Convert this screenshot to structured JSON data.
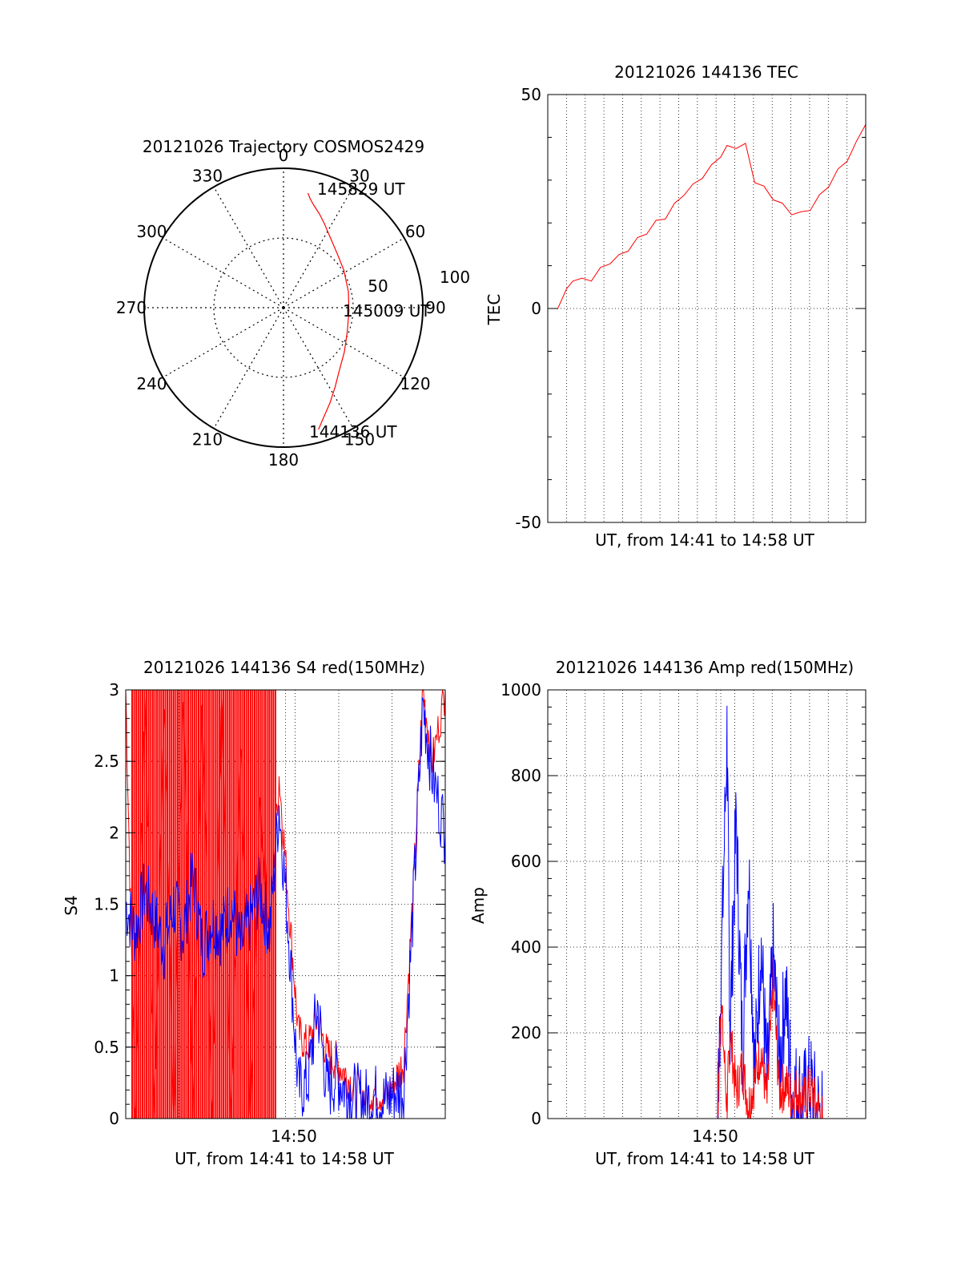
{
  "colors": {
    "red": "#ff0000",
    "blue": "#0000ff",
    "axis": "#000000"
  },
  "polar": {
    "title": "20121026 Trajectory COSMOS2429",
    "azimuth_labels": [
      "0",
      "30",
      "60",
      "90",
      "120",
      "150",
      "180",
      "210",
      "240",
      "270",
      "300",
      "330"
    ],
    "azimuths": [
      0,
      30,
      60,
      90,
      120,
      150,
      180,
      210,
      240,
      270,
      300,
      330
    ],
    "radius_labels": [
      "50",
      "100"
    ],
    "radius_values": [
      50,
      100
    ],
    "point_labels": [
      "145829 UT",
      "145009 UT",
      "144136 UT"
    ]
  },
  "chart_data": [
    {
      "type": "polar",
      "title": "20121026 Trajectory COSMOS2429",
      "rlim": [
        0,
        100
      ],
      "series": [
        {
          "color": "#ff0000",
          "azimuth": [
            12,
            14,
            17,
            21,
            26,
            33,
            44,
            58,
            76,
            93,
            111,
            126,
            138,
            147,
            154,
            160,
            164
          ],
          "zenith": [
            84,
            80,
            76,
            72,
            67,
            61,
            55,
            51,
            48,
            47,
            49,
            54,
            60,
            68,
            76,
            84,
            91
          ]
        }
      ]
    },
    {
      "type": "line",
      "title": "20121026 144136 TEC",
      "xlabel": "UT, from 14:41 to 14:58 UT",
      "ylabel": "TEC",
      "ylim": [
        -50,
        50
      ],
      "yticks": [
        -50,
        0,
        50
      ],
      "xlim": [
        0,
        1
      ],
      "x": [
        0.0,
        0.03,
        0.05,
        0.08,
        0.11,
        0.14,
        0.17,
        0.2,
        0.23,
        0.26,
        0.29,
        0.32,
        0.35,
        0.38,
        0.41,
        0.44,
        0.47,
        0.5,
        0.53,
        0.55,
        0.58,
        0.61,
        0.64,
        0.67,
        0.7,
        0.73,
        0.76,
        0.79,
        0.82,
        0.85,
        0.88,
        0.91,
        0.94,
        0.97,
        1.0
      ],
      "series": [
        {
          "color": "#ff0000",
          "values": [
            -0.2,
            4,
            7,
            6.5,
            7,
            9,
            11,
            12,
            14,
            16,
            18,
            20,
            21.5,
            24,
            27,
            28.5,
            31,
            33,
            36,
            37.5,
            38,
            38,
            30,
            28,
            26,
            24,
            22.5,
            22,
            23.5,
            26,
            29,
            32,
            35,
            38.5,
            43
          ]
        }
      ]
    },
    {
      "type": "line",
      "title": "20121026 144136 S4 red(150MHz)",
      "xlabel": "UT, from 14:41 to 14:58 UT",
      "ylabel": "S4",
      "ylim": [
        0,
        3
      ],
      "yticks": [
        0,
        0.5,
        1,
        1.5,
        2,
        2.5,
        3
      ],
      "xtick_label": "14:50",
      "xtick_value": 0.53,
      "x": [
        0.0,
        0.03,
        0.06,
        0.09,
        0.12,
        0.15,
        0.18,
        0.21,
        0.24,
        0.27,
        0.3,
        0.33,
        0.36,
        0.39,
        0.42,
        0.45,
        0.48,
        0.51,
        0.54,
        0.57,
        0.6,
        0.63,
        0.66,
        0.69,
        0.72,
        0.75,
        0.78,
        0.81,
        0.84,
        0.87,
        0.9,
        0.93,
        0.96,
        1.0
      ],
      "series": [
        {
          "color": "#ff0000",
          "values": [
            3,
            0,
            3,
            0,
            3,
            0,
            3,
            0,
            3,
            0,
            3,
            0,
            2.6,
            0,
            2.2,
            1.3,
            2.4,
            1.5,
            0.6,
            0.5,
            0.7,
            0.45,
            0.4,
            0.3,
            0.2,
            0.15,
            0.2,
            0.15,
            0.25,
            0.4,
            1.6,
            3,
            2.5,
            3
          ]
        },
        {
          "color": "#0000ff",
          "values": [
            1.5,
            1.3,
            1.6,
            1.4,
            1.2,
            1.5,
            1.3,
            1.7,
            1.2,
            1.4,
            1.3,
            1.5,
            1.2,
            1.4,
            1.6,
            1.3,
            2.2,
            1.3,
            0.2,
            0.25,
            0.8,
            0.2,
            0.3,
            0.2,
            0.15,
            0.12,
            0.15,
            0.12,
            0.18,
            0.2,
            1.5,
            2.9,
            2.4,
            2.0
          ]
        }
      ]
    },
    {
      "type": "line",
      "title": "20121026 144136 Amp red(150MHz)",
      "xlabel": "UT, from 14:41 to 14:58 UT",
      "ylabel": "Amp",
      "ylim": [
        0,
        1000
      ],
      "yticks": [
        0,
        200,
        400,
        600,
        800,
        1000
      ],
      "xtick_label": "14:50",
      "xtick_value": 0.53,
      "x": [
        0.0,
        0.25,
        0.5,
        0.52,
        0.53,
        0.55,
        0.56,
        0.58,
        0.6,
        0.62,
        0.64,
        0.66,
        0.68,
        0.7,
        0.72,
        0.74,
        0.76,
        0.78,
        0.8,
        0.82,
        0.84,
        0.86,
        0.88,
        1.0
      ],
      "series": [
        {
          "color": "#ff0000",
          "values": [
            0,
            0,
            0,
            0,
            280,
            30,
            200,
            60,
            120,
            30,
            90,
            160,
            40,
            320,
            60,
            80,
            50,
            70,
            40,
            70,
            30,
            0,
            0,
            0
          ]
        },
        {
          "color": "#0000ff",
          "values": [
            0,
            0,
            0,
            0,
            300,
            900,
            200,
            700,
            150,
            600,
            100,
            420,
            80,
            380,
            120,
            300,
            60,
            60,
            40,
            80,
            20,
            0,
            0,
            0
          ]
        }
      ]
    }
  ]
}
